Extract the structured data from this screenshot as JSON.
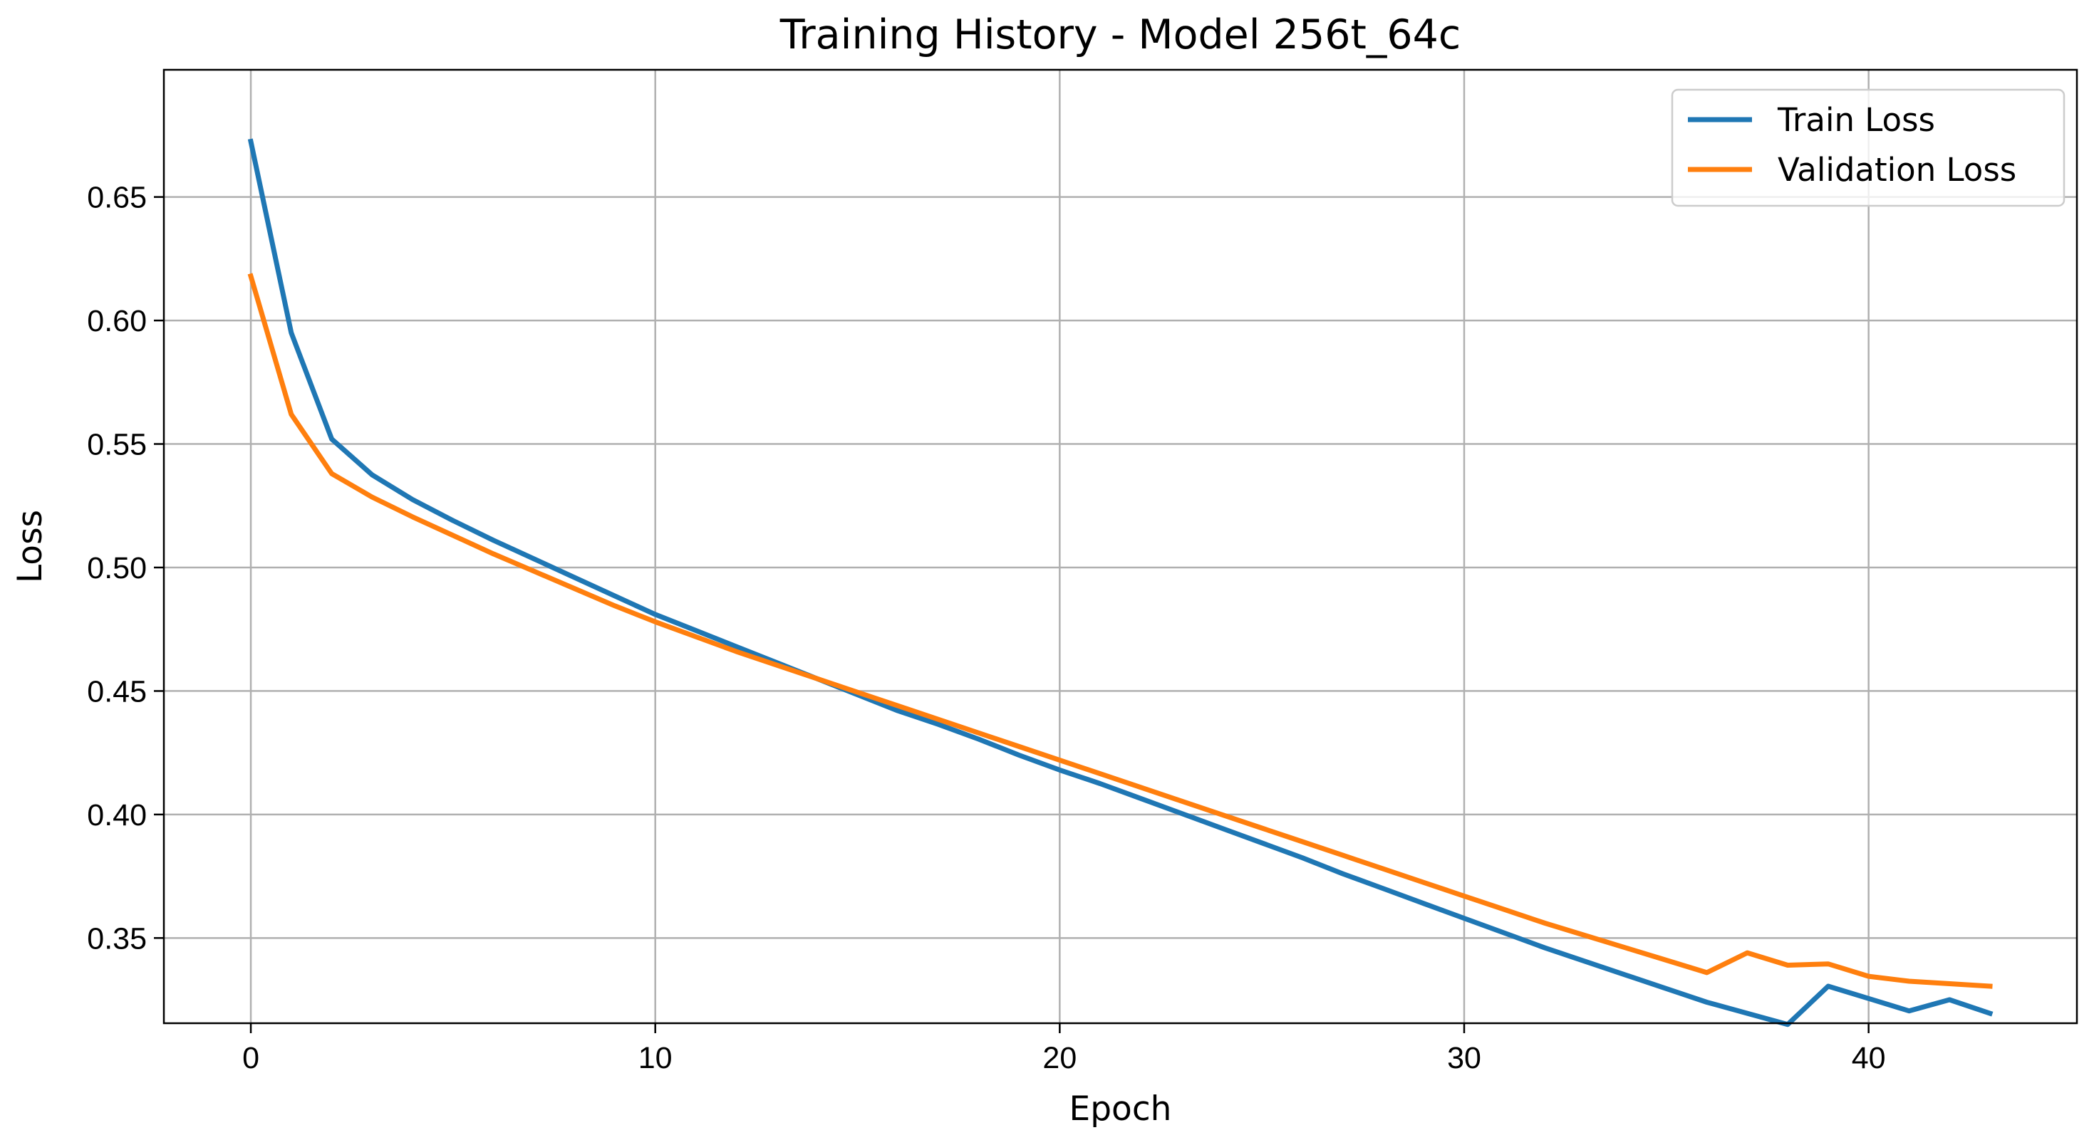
{
  "chart_data": {
    "type": "line",
    "title": "Training History - Model 256t_64c",
    "xlabel": "Epoch",
    "ylabel": "Loss",
    "xlim": [
      -2.15,
      45.15
    ],
    "ylim": [
      0.3155,
      0.7015
    ],
    "xticks": [
      0,
      10,
      20,
      30,
      40
    ],
    "xtick_labels": [
      "0",
      "10",
      "20",
      "30",
      "40"
    ],
    "yticks": [
      0.35,
      0.4,
      0.45,
      0.5,
      0.55,
      0.6,
      0.65
    ],
    "ytick_labels": [
      "0.35",
      "0.40",
      "0.45",
      "0.50",
      "0.55",
      "0.60",
      "0.65"
    ],
    "grid": true,
    "legend_position": "upper right",
    "x": [
      0,
      1,
      2,
      3,
      4,
      5,
      6,
      7,
      8,
      9,
      10,
      11,
      12,
      13,
      14,
      15,
      16,
      17,
      18,
      19,
      20,
      21,
      22,
      23,
      24,
      25,
      26,
      27,
      28,
      29,
      30,
      31,
      32,
      33,
      34,
      35,
      36,
      37,
      38,
      39,
      40,
      41,
      42,
      43
    ],
    "series": [
      {
        "name": "Train Loss",
        "color": "#1f77b4",
        "values": [
          0.6725,
          0.595,
          0.552,
          0.5375,
          0.5275,
          0.519,
          0.511,
          0.5035,
          0.496,
          0.4885,
          0.481,
          0.4745,
          0.468,
          0.4615,
          0.455,
          0.4485,
          0.442,
          0.4365,
          0.4305,
          0.424,
          0.418,
          0.4125,
          0.4065,
          0.4005,
          0.3945,
          0.3885,
          0.3825,
          0.376,
          0.37,
          0.364,
          0.358,
          0.352,
          0.346,
          0.3405,
          0.335,
          0.3295,
          0.324,
          0.3195,
          0.315,
          0.3305,
          0.3255,
          0.3205,
          0.325,
          0.3195
        ]
      },
      {
        "name": "Validation Loss",
        "color": "#ff7f0e",
        "values": [
          0.618,
          0.562,
          0.538,
          0.5285,
          0.5205,
          0.513,
          0.5055,
          0.4985,
          0.4915,
          0.4845,
          0.478,
          0.472,
          0.466,
          0.4605,
          0.455,
          0.4495,
          0.444,
          0.4385,
          0.433,
          0.4275,
          0.422,
          0.4165,
          0.411,
          0.4055,
          0.4,
          0.3945,
          0.389,
          0.3835,
          0.378,
          0.3725,
          0.367,
          0.3615,
          0.356,
          0.351,
          0.346,
          0.341,
          0.336,
          0.344,
          0.339,
          0.3395,
          0.3345,
          0.3325,
          0.3315,
          0.3305
        ]
      }
    ]
  }
}
